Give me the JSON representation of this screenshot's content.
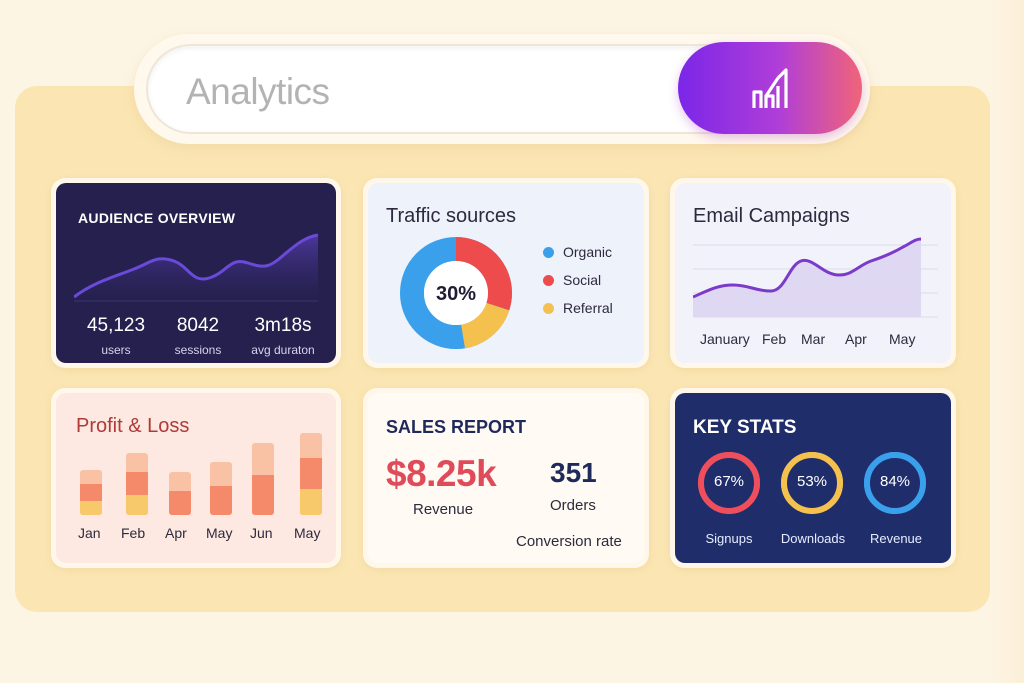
{
  "search": {
    "text": "Analytics",
    "button_icon": "chart-growth-icon"
  },
  "colors": {
    "accent_purple": "#7b26e8",
    "accent_pink": "#f06478",
    "audience_bg": "#25204d",
    "keystats_bg": "#1f2e6b",
    "organic": "#3aa0ec",
    "social": "#ee4c4c",
    "referral": "#f4c14f",
    "revenue_red": "#e04b5a"
  },
  "audience": {
    "title": "AUDIENCE OVERVIEW",
    "stats": [
      {
        "value": "45,123",
        "label": "users"
      },
      {
        "value": "8042",
        "label": "sessions"
      },
      {
        "value": "3m18s",
        "label": "avg duraton"
      }
    ]
  },
  "traffic": {
    "title": "Traffic sources",
    "center_value": "30%",
    "legend": [
      {
        "label": "Organic",
        "color": "#3aa0ec"
      },
      {
        "label": "Social",
        "color": "#ee4c4c"
      },
      {
        "label": "Referral",
        "color": "#f4c14f"
      }
    ]
  },
  "email": {
    "title": "Email Campaigns",
    "months": [
      "January",
      "Feb",
      "Mar",
      "Apr",
      "May"
    ]
  },
  "profit": {
    "title": "Profit & Loss",
    "months": [
      "Jan",
      "Feb",
      "Apr",
      "May",
      "Jun",
      "May"
    ],
    "levels": [
      0.55,
      0.75,
      0.52,
      0.65,
      0.88,
      1.0
    ]
  },
  "sales": {
    "title": "SALES REPORT",
    "revenue_value": "$8.25k",
    "revenue_label": "Revenue",
    "orders_value": "351",
    "orders_label": "Orders",
    "conversion_label": "Conversion rate"
  },
  "keystats": {
    "title": "KEY STATS",
    "rings": [
      {
        "value": "67%",
        "label": "Signups",
        "color": "#ef4f5c",
        "fraction": 0.67
      },
      {
        "value": "53%",
        "label": "Downloads",
        "color": "#f4c14f",
        "fraction": 0.53
      },
      {
        "value": "84%",
        "label": "Revenue",
        "color": "#3aa0ec",
        "fraction": 0.84
      }
    ]
  }
}
